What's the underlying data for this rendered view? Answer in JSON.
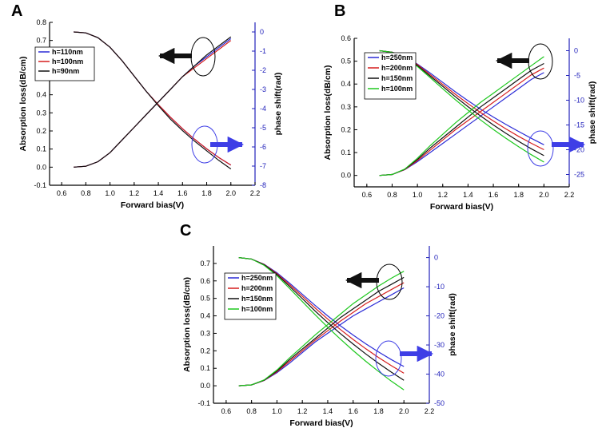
{
  "colors": {
    "blue": "#2b2bd6",
    "red": "#d61e1e",
    "black": "#111111",
    "green": "#1ec81e",
    "right_axis": "#2222bb",
    "arrow_blue": "#3e3ee6"
  },
  "chart_data": [
    {
      "type": "line",
      "panel_label": "A",
      "xlabel": "Forward bias(V)",
      "ylabel": "Absorption loss(dB/cm)",
      "y2label": "phase shift(rad)",
      "xlim": [
        0.5,
        2.2
      ],
      "ylim": [
        -0.1,
        0.8
      ],
      "y2lim": [
        -8,
        0.5
      ],
      "x_ticks": [
        "0.6",
        "0.8",
        "1.0",
        "1.2",
        "1.4",
        "1.6",
        "1.8",
        "2.0",
        "2.2"
      ],
      "y_ticks": [
        "-0.1",
        "0.0",
        "0.1",
        "0.2",
        "0.3",
        "0.4",
        "0.5",
        "0.6",
        "0.7",
        "0.8"
      ],
      "y2_ticks": [
        "-8",
        "-7",
        "-6",
        "-5",
        "-4",
        "-3",
        "-2",
        "-1",
        "0"
      ],
      "x": [
        0.7,
        0.8,
        0.9,
        1.0,
        1.1,
        1.2,
        1.3,
        1.4,
        1.5,
        1.6,
        1.7,
        1.8,
        1.9,
        2.0
      ],
      "legend_position": "top-left",
      "series": [
        {
          "name": "h=110nm",
          "color": "blue",
          "loss": [
            0.0,
            0.005,
            0.03,
            0.08,
            0.15,
            0.22,
            0.29,
            0.36,
            0.43,
            0.5,
            0.56,
            0.61,
            0.66,
            0.71
          ],
          "phase": [
            0,
            -0.05,
            -0.3,
            -0.8,
            -1.5,
            -2.3,
            -3.1,
            -3.8,
            -4.45,
            -5.05,
            -5.6,
            -6.1,
            -6.55,
            -6.95
          ]
        },
        {
          "name": "h=100nm",
          "color": "red",
          "loss": [
            0.0,
            0.005,
            0.03,
            0.08,
            0.15,
            0.22,
            0.29,
            0.36,
            0.43,
            0.5,
            0.55,
            0.6,
            0.65,
            0.7
          ],
          "phase": [
            0,
            -0.05,
            -0.3,
            -0.8,
            -1.5,
            -2.3,
            -3.1,
            -3.8,
            -4.45,
            -5.05,
            -5.6,
            -6.1,
            -6.55,
            -6.95
          ]
        },
        {
          "name": "h=90nm",
          "color": "black",
          "loss": [
            0.0,
            0.005,
            0.03,
            0.08,
            0.15,
            0.22,
            0.29,
            0.36,
            0.43,
            0.5,
            0.56,
            0.62,
            0.67,
            0.72
          ],
          "phase": [
            0,
            -0.05,
            -0.3,
            -0.8,
            -1.5,
            -2.3,
            -3.1,
            -3.85,
            -4.55,
            -5.15,
            -5.7,
            -6.2,
            -6.7,
            -7.15
          ]
        }
      ],
      "annotations": {
        "loss_arrow": "left",
        "phase_arrow": "right"
      }
    },
    {
      "type": "line",
      "panel_label": "B",
      "xlabel": "Forward bias(V)",
      "ylabel": "Absorption loss(dB/cm)",
      "y2label": "phase shift(rad)",
      "xlim": [
        0.5,
        2.2
      ],
      "ylim": [
        -0.05,
        0.6
      ],
      "y2lim": [
        -27.5,
        2.5
      ],
      "x_ticks": [
        "0.6",
        "0.8",
        "1.0",
        "1.2",
        "1.4",
        "1.6",
        "1.8",
        "2.0",
        "2.2"
      ],
      "y_ticks": [
        "0.0",
        "0.1",
        "0.2",
        "0.3",
        "0.4",
        "0.5",
        "0.6"
      ],
      "y2_ticks": [
        "-25",
        "-20",
        "-15",
        "-10",
        "-5",
        "0"
      ],
      "x": [
        0.7,
        0.8,
        0.9,
        1.0,
        1.1,
        1.2,
        1.3,
        1.4,
        1.5,
        1.6,
        1.7,
        1.8,
        1.9,
        2.0
      ],
      "legend_position": "top-left",
      "series": [
        {
          "name": "h=250nm",
          "color": "blue",
          "loss": [
            0.0,
            0.004,
            0.025,
            0.06,
            0.1,
            0.14,
            0.18,
            0.22,
            0.26,
            0.3,
            0.34,
            0.38,
            0.42,
            0.45
          ],
          "phase": [
            0,
            -0.3,
            -1.2,
            -2.7,
            -4.5,
            -6.4,
            -8.3,
            -10.1,
            -11.8,
            -13.4,
            -14.9,
            -16.3,
            -17.7,
            -19.0
          ]
        },
        {
          "name": "h=200nm",
          "color": "red",
          "loss": [
            0.0,
            0.004,
            0.026,
            0.065,
            0.11,
            0.155,
            0.2,
            0.24,
            0.28,
            0.32,
            0.36,
            0.4,
            0.44,
            0.47
          ],
          "phase": [
            0,
            -0.3,
            -1.2,
            -2.8,
            -4.8,
            -6.8,
            -8.8,
            -10.7,
            -12.5,
            -14.2,
            -15.8,
            -17.3,
            -18.7,
            -20.0
          ]
        },
        {
          "name": "h=150nm",
          "color": "black",
          "loss": [
            0.0,
            0.004,
            0.027,
            0.07,
            0.12,
            0.165,
            0.21,
            0.255,
            0.3,
            0.34,
            0.38,
            0.42,
            0.46,
            0.49
          ],
          "phase": [
            0,
            -0.3,
            -1.3,
            -3.0,
            -5.1,
            -7.2,
            -9.3,
            -11.3,
            -13.2,
            -15.0,
            -16.7,
            -18.3,
            -19.8,
            -21.2
          ]
        },
        {
          "name": "h=100nm",
          "color": "green",
          "loss": [
            0.0,
            0.004,
            0.028,
            0.075,
            0.13,
            0.18,
            0.23,
            0.275,
            0.32,
            0.36,
            0.4,
            0.44,
            0.48,
            0.52
          ],
          "phase": [
            0,
            -0.3,
            -1.3,
            -3.2,
            -5.4,
            -7.7,
            -9.9,
            -12.0,
            -14.0,
            -15.9,
            -17.7,
            -19.4,
            -21.0,
            -22.5
          ]
        }
      ],
      "annotations": {
        "loss_arrow": "left",
        "phase_arrow": "right"
      }
    },
    {
      "type": "line",
      "panel_label": "C",
      "xlabel": "Forward bias(V)",
      "ylabel": "Absorption loss(dB/cm)",
      "y2label": "phase shift(rad)",
      "xlim": [
        0.5,
        2.2
      ],
      "ylim": [
        -0.1,
        0.8
      ],
      "y2lim": [
        -50,
        4
      ],
      "x_ticks": [
        "0.6",
        "0.8",
        "1.0",
        "1.2",
        "1.4",
        "1.6",
        "1.8",
        "2.0",
        "2.2"
      ],
      "y_ticks": [
        "-0.1",
        "0.0",
        "0.1",
        "0.2",
        "0.3",
        "0.4",
        "0.5",
        "0.6",
        "0.7"
      ],
      "y2_ticks": [
        "-50",
        "-40",
        "-30",
        "-20",
        "-10",
        "0"
      ],
      "x": [
        0.7,
        0.8,
        0.9,
        1.0,
        1.1,
        1.2,
        1.3,
        1.4,
        1.5,
        1.6,
        1.7,
        1.8,
        1.9,
        2.0
      ],
      "legend_position": "top-left",
      "series": [
        {
          "name": "h=250nm",
          "color": "blue",
          "loss": [
            0.0,
            0.005,
            0.03,
            0.075,
            0.13,
            0.19,
            0.25,
            0.3,
            0.35,
            0.4,
            0.44,
            0.48,
            0.52,
            0.56
          ],
          "phase": [
            0,
            -0.5,
            -2.3,
            -5.2,
            -8.8,
            -12.6,
            -16.4,
            -20.0,
            -23.4,
            -26.6,
            -29.6,
            -32.4,
            -35.0,
            -37.4
          ]
        },
        {
          "name": "h=200nm",
          "color": "red",
          "loss": [
            0.0,
            0.005,
            0.031,
            0.08,
            0.14,
            0.2,
            0.26,
            0.315,
            0.37,
            0.42,
            0.47,
            0.51,
            0.55,
            0.59
          ],
          "phase": [
            0,
            -0.5,
            -2.4,
            -5.5,
            -9.3,
            -13.3,
            -17.3,
            -21.1,
            -24.7,
            -28.1,
            -31.3,
            -34.3,
            -37.1,
            -39.7
          ]
        },
        {
          "name": "h=150nm",
          "color": "black",
          "loss": [
            0.0,
            0.005,
            0.032,
            0.085,
            0.15,
            0.21,
            0.27,
            0.33,
            0.39,
            0.44,
            0.49,
            0.54,
            0.58,
            0.62
          ],
          "phase": [
            0,
            -0.5,
            -2.5,
            -5.8,
            -9.9,
            -14.1,
            -18.3,
            -22.3,
            -26.1,
            -29.7,
            -33.1,
            -36.3,
            -39.3,
            -42.1
          ]
        },
        {
          "name": "h=100nm",
          "color": "green",
          "loss": [
            0.0,
            0.005,
            0.034,
            0.09,
            0.16,
            0.225,
            0.29,
            0.35,
            0.41,
            0.47,
            0.52,
            0.57,
            0.615,
            0.655
          ],
          "phase": [
            0,
            -0.5,
            -2.7,
            -6.2,
            -10.6,
            -15.1,
            -19.6,
            -23.9,
            -28.0,
            -31.9,
            -35.6,
            -39.1,
            -42.4,
            -45.4
          ]
        }
      ],
      "annotations": {
        "loss_arrow": "left",
        "phase_arrow": "right"
      }
    }
  ]
}
